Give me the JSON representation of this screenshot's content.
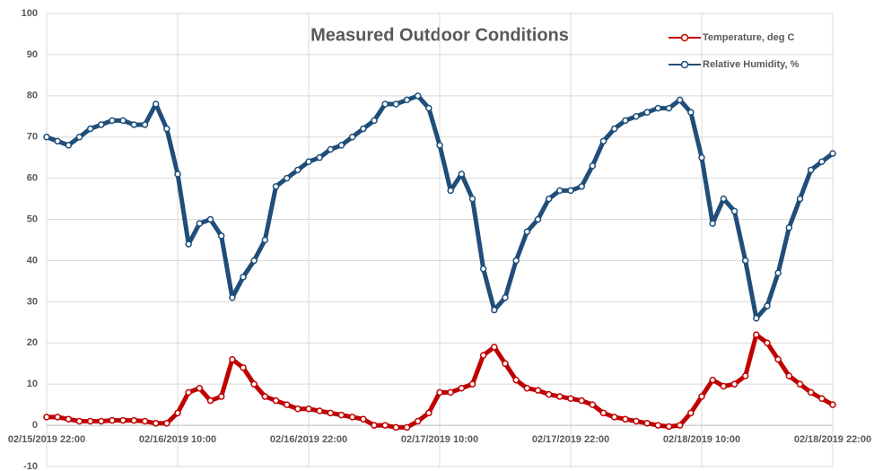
{
  "chart_data": {
    "type": "line",
    "title": "Measured Outdoor Conditions",
    "x": [
      "02/15/2019 22:00",
      "02/15/2019 23:00",
      "02/16/2019 00:00",
      "02/16/2019 01:00",
      "02/16/2019 02:00",
      "02/16/2019 03:00",
      "02/16/2019 04:00",
      "02/16/2019 05:00",
      "02/16/2019 06:00",
      "02/16/2019 07:00",
      "02/16/2019 08:00",
      "02/16/2019 09:00",
      "02/16/2019 10:00",
      "02/16/2019 11:00",
      "02/16/2019 12:00",
      "02/16/2019 13:00",
      "02/16/2019 14:00",
      "02/16/2019 15:00",
      "02/16/2019 16:00",
      "02/16/2019 17:00",
      "02/16/2019 18:00",
      "02/16/2019 19:00",
      "02/16/2019 20:00",
      "02/16/2019 21:00",
      "02/16/2019 22:00",
      "02/16/2019 23:00",
      "02/17/2019 00:00",
      "02/17/2019 01:00",
      "02/17/2019 02:00",
      "02/17/2019 03:00",
      "02/17/2019 04:00",
      "02/17/2019 05:00",
      "02/17/2019 06:00",
      "02/17/2019 07:00",
      "02/17/2019 08:00",
      "02/17/2019 09:00",
      "02/17/2019 10:00",
      "02/17/2019 11:00",
      "02/17/2019 12:00",
      "02/17/2019 13:00",
      "02/17/2019 14:00",
      "02/17/2019 15:00",
      "02/17/2019 16:00",
      "02/17/2019 17:00",
      "02/17/2019 18:00",
      "02/17/2019 19:00",
      "02/17/2019 20:00",
      "02/17/2019 21:00",
      "02/17/2019 22:00",
      "02/17/2019 23:00",
      "02/18/2019 00:00",
      "02/18/2019 01:00",
      "02/18/2019 02:00",
      "02/18/2019 03:00",
      "02/18/2019 04:00",
      "02/18/2019 05:00",
      "02/18/2019 06:00",
      "02/18/2019 07:00",
      "02/18/2019 08:00",
      "02/18/2019 09:00",
      "02/18/2019 10:00",
      "02/18/2019 11:00",
      "02/18/2019 12:00",
      "02/18/2019 13:00",
      "02/18/2019 14:00",
      "02/18/2019 15:00",
      "02/18/2019 16:00",
      "02/18/2019 17:00",
      "02/18/2019 18:00",
      "02/18/2019 19:00",
      "02/18/2019 20:00",
      "02/18/2019 21:00",
      "02/18/2019 22:00"
    ],
    "series": [
      {
        "name": "Temperature, deg C",
        "color": "#c00000",
        "values": [
          2,
          2,
          1.5,
          1,
          1,
          1,
          1.2,
          1.2,
          1.2,
          1,
          0.5,
          0.5,
          3,
          8,
          9,
          6,
          7,
          16,
          14,
          10,
          7,
          6,
          5,
          4,
          4,
          3.5,
          3,
          2.5,
          2,
          1.5,
          0,
          0,
          -0.5,
          -0.5,
          1,
          3,
          8,
          8,
          9,
          10,
          17,
          19,
          15,
          11,
          9,
          8.5,
          7.5,
          7,
          6.5,
          6,
          5,
          3,
          2,
          1.5,
          1,
          0.5,
          0,
          -0.3,
          0,
          3,
          7,
          11,
          9.5,
          10,
          12,
          22,
          20,
          16,
          12,
          10,
          8,
          6.5,
          5
        ]
      },
      {
        "name": "Relative Humidity, %",
        "color": "#1f4e79",
        "values": [
          70,
          69,
          68,
          70,
          72,
          73,
          74,
          74,
          73,
          73,
          78,
          72,
          61,
          44,
          49,
          50,
          46,
          31,
          36,
          40,
          45,
          58,
          60,
          62,
          64,
          65,
          67,
          68,
          70,
          72,
          74,
          78,
          78,
          79,
          80,
          77,
          68,
          57,
          61,
          55,
          38,
          28,
          31,
          40,
          47,
          50,
          55,
          57,
          57,
          58,
          63,
          69,
          72,
          74,
          75,
          76,
          77,
          77,
          79,
          76,
          65,
          49,
          55,
          52,
          40,
          26,
          29,
          37,
          48,
          55,
          62,
          64,
          66
        ]
      }
    ],
    "xticks": [
      "02/15/2019 22:00",
      "02/16/2019 10:00",
      "02/16/2019 22:00",
      "02/17/2019 10:00",
      "02/17/2019 22:00",
      "02/18/2019 10:00",
      "02/18/2019 22:00"
    ],
    "ylim": [
      -10,
      100
    ],
    "yticks": [
      -10,
      0,
      10,
      20,
      30,
      40,
      50,
      60,
      70,
      80,
      90,
      100
    ],
    "grid": true,
    "legend": "upper right"
  }
}
